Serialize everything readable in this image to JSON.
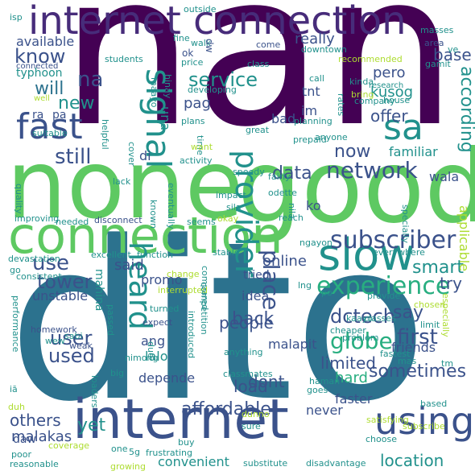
{
  "palette": {
    "dark_purple": "#440154",
    "indigo": "#472c7a",
    "blue": "#3b528b",
    "steel_blue": "#2c728e",
    "teal": "#21918c",
    "green_teal": "#28ae80",
    "green": "#5ec962",
    "light_green": "#addc30",
    "yellow": "#fde725"
  },
  "words": [
    {
      "id": "nan",
      "text": "nan",
      "color": "dark_purple"
    },
    {
      "id": "dito",
      "text": "dito",
      "color": "steel_blue"
    },
    {
      "id": "none",
      "text": "none",
      "color": "green"
    },
    {
      "id": "good",
      "text": "good",
      "color": "green"
    },
    {
      "id": "internet_conn",
      "text": "internet connection",
      "color": "indigo"
    },
    {
      "id": "internet",
      "text": "internet",
      "color": "blue"
    },
    {
      "id": "connection",
      "text": "connection",
      "color": "green"
    },
    {
      "id": "using",
      "text": "using",
      "color": "blue"
    },
    {
      "id": "fast",
      "text": "fast",
      "color": "blue"
    },
    {
      "id": "slow",
      "text": "slow",
      "color": "teal"
    },
    {
      "id": "sa",
      "text": "sa",
      "color": "teal"
    },
    {
      "id": "signal",
      "text": "signal",
      "color": "teal"
    },
    {
      "id": "provider",
      "text": "provider",
      "color": "teal"
    },
    {
      "id": "heard",
      "text": "heard",
      "color": "teal"
    },
    {
      "id": "experience",
      "text": "experience",
      "color": "green_teal"
    },
    {
      "id": "subscriber",
      "text": "subscriber",
      "color": "blue"
    },
    {
      "id": "network",
      "text": "network",
      "color": "blue"
    },
    {
      "id": "globe",
      "text": "globe",
      "color": "green_teal"
    },
    {
      "id": "know",
      "text": "know",
      "color": "blue"
    },
    {
      "id": "service",
      "text": "service",
      "color": "teal"
    },
    {
      "id": "data",
      "text": "data",
      "color": "blue"
    },
    {
      "id": "still",
      "text": "still",
      "color": "blue"
    },
    {
      "id": "use",
      "text": "use",
      "color": "blue"
    },
    {
      "id": "tower",
      "text": "tower",
      "color": "blue"
    },
    {
      "id": "user",
      "text": "user",
      "color": "blue"
    },
    {
      "id": "used",
      "text": "used",
      "color": "blue"
    },
    {
      "id": "na",
      "text": "na",
      "color": "blue"
    },
    {
      "id": "will",
      "text": "will",
      "color": "steel_blue"
    },
    {
      "id": "new",
      "text": "new",
      "color": "teal"
    },
    {
      "id": "now",
      "text": "now",
      "color": "blue"
    },
    {
      "id": "smart",
      "text": "smart",
      "color": "teal"
    },
    {
      "id": "say",
      "text": "say",
      "color": "blue"
    },
    {
      "id": "first",
      "text": "first",
      "color": "blue"
    },
    {
      "id": "limited",
      "text": "limited",
      "color": "blue"
    },
    {
      "id": "dctech",
      "text": "dctech",
      "color": "blue"
    },
    {
      "id": "sometimes",
      "text": "sometimes",
      "color": "blue"
    },
    {
      "id": "affordable",
      "text": "affordable",
      "color": "blue"
    },
    {
      "id": "location",
      "text": "location",
      "color": "teal"
    },
    {
      "id": "place",
      "text": "place",
      "color": "blue"
    },
    {
      "id": "back",
      "text": "back",
      "color": "blue"
    },
    {
      "id": "people",
      "text": "people",
      "color": "blue"
    },
    {
      "id": "online",
      "text": "online",
      "color": "blue"
    },
    {
      "id": "said",
      "text": "said",
      "color": "blue"
    },
    {
      "id": "dont",
      "text": "dont",
      "color": "blue"
    },
    {
      "id": "load",
      "text": "load",
      "color": "blue"
    },
    {
      "id": "yet",
      "text": "yet",
      "color": "teal"
    },
    {
      "id": "others",
      "text": "others",
      "color": "blue"
    },
    {
      "id": "malakas",
      "text": "malakas",
      "color": "blue"
    },
    {
      "id": "hard",
      "text": "hard",
      "color": "green_teal"
    },
    {
      "id": "offer",
      "text": "offer",
      "color": "blue"
    },
    {
      "id": "according",
      "text": "according",
      "color": "teal"
    },
    {
      "id": "try",
      "text": "try",
      "color": "blue"
    },
    {
      "id": "base",
      "text": "base",
      "color": "blue"
    },
    {
      "id": "really",
      "text": "really",
      "color": "blue"
    },
    {
      "id": "available",
      "text": "available",
      "color": "blue"
    },
    {
      "id": "pero",
      "text": "pero",
      "color": "blue"
    },
    {
      "id": "kusog",
      "text": "kusog",
      "color": "teal"
    },
    {
      "id": "tnt",
      "text": "tnt",
      "color": "blue"
    },
    {
      "id": "im",
      "text": "im",
      "color": "blue"
    },
    {
      "id": "bad",
      "text": "bad",
      "color": "blue"
    },
    {
      "id": "pag",
      "text": "pag",
      "color": "blue"
    },
    {
      "id": "una",
      "text": "una",
      "color": "teal"
    },
    {
      "id": "di",
      "text": "di",
      "color": "blue"
    },
    {
      "id": "ko",
      "text": "ko",
      "color": "blue"
    },
    {
      "id": "ang",
      "text": "ang",
      "color": "blue"
    },
    {
      "id": "lalo",
      "text": "lalo",
      "color": "teal"
    },
    {
      "id": "malapit",
      "text": "malapit",
      "color": "blue"
    },
    {
      "id": "friends",
      "text": "friends",
      "color": "blue"
    },
    {
      "id": "faster",
      "text": "faster",
      "color": "blue"
    },
    {
      "id": "never",
      "text": "never",
      "color": "blue"
    },
    {
      "id": "daw",
      "text": "daw",
      "color": "blue"
    },
    {
      "id": "depende",
      "text": "depende",
      "color": "blue"
    },
    {
      "id": "convenient",
      "text": "convenient",
      "color": "teal"
    },
    {
      "id": "applicable",
      "text": "applicable",
      "color": "light_green"
    },
    {
      "id": "familiar",
      "text": "familiar",
      "color": "teal"
    },
    {
      "id": "wala",
      "text": "wala",
      "color": "blue"
    },
    {
      "id": "promo",
      "text": "promo",
      "color": "blue"
    },
    {
      "id": "idea",
      "text": "idea",
      "color": "blue"
    },
    {
      "id": "tried",
      "text": "tried",
      "color": "blue"
    },
    {
      "id": "unstable",
      "text": "unstable",
      "color": "blue"
    },
    {
      "id": "mahina",
      "text": "mahina",
      "color": "teal"
    },
    {
      "id": "typhoon",
      "text": "typhoon",
      "color": "teal"
    },
    {
      "id": "ra",
      "text": "ra",
      "color": "blue"
    },
    {
      "id": "pa",
      "text": "pa",
      "color": "blue"
    },
    {
      "id": "isp",
      "text": "isp",
      "color": "teal"
    },
    {
      "id": "outside",
      "text": "outside",
      "color": "teal"
    },
    {
      "id": "come",
      "text": "come",
      "color": "blue"
    },
    {
      "id": "area",
      "text": "area",
      "color": "blue"
    },
    {
      "id": "masses",
      "text": "masses",
      "color": "teal"
    },
    {
      "id": "gamit",
      "text": "gamit",
      "color": "teal"
    },
    {
      "id": "students",
      "text": "students",
      "color": "teal"
    },
    {
      "id": "connected",
      "text": "connected",
      "color": "blue"
    },
    {
      "id": "recommended",
      "text": "recommended",
      "color": "light_green"
    },
    {
      "id": "downtown",
      "text": "downtown",
      "color": "teal"
    },
    {
      "id": "class",
      "text": "class",
      "color": "teal"
    },
    {
      "id": "kinda",
      "text": "kinda",
      "color": "teal"
    },
    {
      "id": "bring",
      "text": "bring",
      "color": "light_green"
    },
    {
      "id": "research",
      "text": "research",
      "color": "teal"
    },
    {
      "id": "call",
      "text": "call",
      "color": "teal"
    },
    {
      "id": "company",
      "text": "company",
      "color": "teal"
    },
    {
      "id": "rates",
      "text": "rates",
      "color": "teal"
    },
    {
      "id": "house",
      "text": "house",
      "color": "teal"
    },
    {
      "id": "ve",
      "text": "ve",
      "color": "teal"
    },
    {
      "id": "price",
      "text": "price",
      "color": "teal"
    },
    {
      "id": "ok",
      "text": "ok",
      "color": "blue"
    },
    {
      "id": "fine",
      "text": "fine",
      "color": "teal"
    },
    {
      "id": "walk",
      "text": "walk",
      "color": "teal"
    },
    {
      "id": "dw",
      "text": "dw",
      "color": "blue"
    },
    {
      "id": "hinay",
      "text": "hinay",
      "color": "teal"
    },
    {
      "id": "maayo",
      "text": "maayo",
      "color": "teal"
    },
    {
      "id": "developing",
      "text": "developing",
      "color": "teal"
    },
    {
      "id": "suitable",
      "text": "suitable",
      "color": "teal"
    },
    {
      "id": "well",
      "text": "well",
      "color": "light_green"
    },
    {
      "id": "helpful",
      "text": "helpful",
      "color": "teal"
    },
    {
      "id": "plans",
      "text": "plans",
      "color": "teal"
    },
    {
      "id": "time",
      "text": "time",
      "color": "teal"
    },
    {
      "id": "want",
      "text": "want",
      "color": "light_green"
    },
    {
      "id": "activity",
      "text": "activity",
      "color": "teal"
    },
    {
      "id": "planning",
      "text": "planning",
      "color": "teal"
    },
    {
      "id": "prepaid",
      "text": "prepaid",
      "color": "teal"
    },
    {
      "id": "great",
      "text": "great",
      "color": "teal"
    },
    {
      "id": "anyone",
      "text": "anyone",
      "color": "teal"
    },
    {
      "id": "quality",
      "text": "quality",
      "color": "teal"
    },
    {
      "id": "cover",
      "text": "cover",
      "color": "teal"
    },
    {
      "id": "lack",
      "text": "lack",
      "color": "teal"
    },
    {
      "id": "eventually",
      "text": "eventually",
      "color": "teal"
    },
    {
      "id": "speedy",
      "text": "speedy",
      "color": "teal"
    },
    {
      "id": "odette",
      "text": "odette",
      "color": "teal"
    },
    {
      "id": "fairly",
      "text": "fairly",
      "color": "teal"
    },
    {
      "id": "impact",
      "text": "impact",
      "color": "teal"
    },
    {
      "id": "sila",
      "text": "sila",
      "color": "teal"
    },
    {
      "id": "nila",
      "text": "nila",
      "color": "teal"
    },
    {
      "id": "specially",
      "text": "specially",
      "color": "teal"
    },
    {
      "id": "reach",
      "text": "reach",
      "color": "teal"
    },
    {
      "id": "improving",
      "text": "improving",
      "color": "teal"
    },
    {
      "id": "needed",
      "text": "needed",
      "color": "teal"
    },
    {
      "id": "disconnect",
      "text": "disconnect",
      "color": "blue"
    },
    {
      "id": "known",
      "text": "known",
      "color": "teal"
    },
    {
      "id": "seems",
      "text": "seems",
      "color": "teal"
    },
    {
      "id": "okay",
      "text": "okay",
      "color": "light_green"
    },
    {
      "id": "ngayon",
      "text": "ngayon",
      "color": "teal"
    },
    {
      "id": "devastation",
      "text": "devastation",
      "color": "teal"
    },
    {
      "id": "excellent",
      "text": "excellent",
      "color": "teal"
    },
    {
      "id": "function",
      "text": "function",
      "color": "teal"
    },
    {
      "id": "stable",
      "text": "stable",
      "color": "teal"
    },
    {
      "id": "everywhere",
      "text": "everywhere",
      "color": "teal"
    },
    {
      "id": "go",
      "text": "go",
      "color": "teal"
    },
    {
      "id": "consistent",
      "text": "consistent",
      "color": "teal"
    },
    {
      "id": "change",
      "text": "change",
      "color": "light_green"
    },
    {
      "id": "compared",
      "text": "compared",
      "color": "teal"
    },
    {
      "id": "lng",
      "text": "lng",
      "color": "teal"
    },
    {
      "id": "po",
      "text": "po",
      "color": "teal"
    },
    {
      "id": "chosen",
      "text": "chosen",
      "color": "light_green"
    },
    {
      "id": "cheaper",
      "text": "cheaper",
      "color": "teal"
    },
    {
      "id": "provide",
      "text": "provide",
      "color": "teal"
    },
    {
      "id": "interrupted",
      "text": "interrupted",
      "color": "light_green"
    },
    {
      "id": "competition",
      "text": "competition",
      "color": "teal"
    },
    {
      "id": "limit",
      "text": "limit",
      "color": "teal"
    },
    {
      "id": "performance",
      "text": "performance",
      "color": "teal"
    },
    {
      "id": "homework",
      "text": "homework",
      "color": "blue"
    },
    {
      "id": "passed",
      "text": "passed",
      "color": "teal"
    },
    {
      "id": "turned",
      "text": "turned",
      "color": "teal"
    },
    {
      "id": "introduced",
      "text": "introduced",
      "color": "teal"
    },
    {
      "id": "kaayo",
      "text": "kaayo",
      "color": "teal"
    },
    {
      "id": "classes",
      "text": "classes",
      "color": "teal"
    },
    {
      "id": "especially",
      "text": "especially",
      "color": "light_green"
    },
    {
      "id": "expect",
      "text": "expect",
      "color": "blue"
    },
    {
      "id": "problem",
      "text": "problem",
      "color": "teal"
    },
    {
      "id": "sabi",
      "text": "sabi",
      "color": "teal"
    },
    {
      "id": "wew",
      "text": "wew",
      "color": "teal"
    },
    {
      "id": "weak",
      "text": "weak",
      "color": "blue"
    },
    {
      "id": "anything",
      "text": "anything",
      "color": "teal"
    },
    {
      "id": "fastest",
      "text": "fastest",
      "color": "teal"
    },
    {
      "id": "mas",
      "text": "mas",
      "color": "teal"
    },
    {
      "id": "tm",
      "text": "tm",
      "color": "teal"
    },
    {
      "id": "due",
      "text": "due",
      "color": "teal"
    },
    {
      "id": "nimong",
      "text": "nimong",
      "color": "teal"
    },
    {
      "id": "classmates",
      "text": "classmates",
      "color": "teal"
    },
    {
      "id": "ia",
      "text": "iā",
      "color": "teal"
    },
    {
      "id": "big",
      "text": "big",
      "color": "teal"
    },
    {
      "id": "duh",
      "text": "duh",
      "color": "light_green"
    },
    {
      "id": "loaders",
      "text": "loaders",
      "color": "teal"
    },
    {
      "id": "haman",
      "text": "haman",
      "color": "teal"
    },
    {
      "id": "goes",
      "text": "goes",
      "color": "teal"
    },
    {
      "id": "based",
      "text": "based",
      "color": "teal"
    },
    {
      "id": "coverage",
      "text": "coverage",
      "color": "light_green"
    },
    {
      "id": "dunno",
      "text": "dunno",
      "color": "light_green"
    },
    {
      "id": "satisfying",
      "text": "satisfying",
      "color": "light_green"
    },
    {
      "id": "subscribe",
      "text": "subscribe",
      "color": "light_green"
    },
    {
      "id": "sure",
      "text": "sure",
      "color": "teal"
    },
    {
      "id": "one",
      "text": "one",
      "color": "teal"
    },
    {
      "id": "5g",
      "text": "5g",
      "color": "teal"
    },
    {
      "id": "choose",
      "text": "choose",
      "color": "teal"
    },
    {
      "id": "poor",
      "text": "poor",
      "color": "teal"
    },
    {
      "id": "buy",
      "text": "buy",
      "color": "teal"
    },
    {
      "id": "reasonable",
      "text": "reasonable",
      "color": "teal"
    },
    {
      "id": "growing",
      "text": "growing",
      "color": "light_green"
    },
    {
      "id": "frustrating",
      "text": "frustrating",
      "color": "teal"
    },
    {
      "id": "substitute",
      "text": "substitute",
      "color": "teal"
    },
    {
      "id": "disadvantage",
      "text": "disadvantage",
      "color": "teal"
    }
  ]
}
